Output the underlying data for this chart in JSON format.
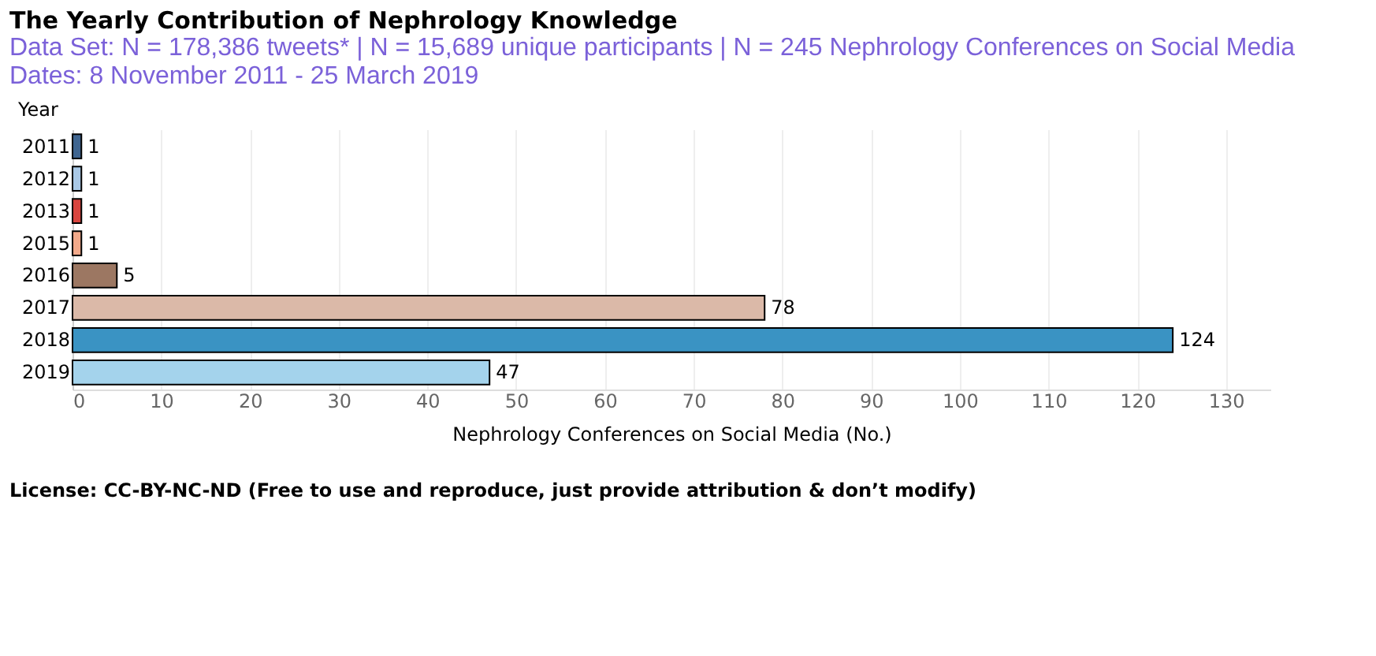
{
  "chart_data": {
    "type": "bar",
    "orientation": "horizontal",
    "title": "The Yearly Contribution of Nephrology Knowledge",
    "subtitle": "Data Set:  N = 178,386 tweets* | N = 15,689 unique participants | N = 245 Nephrology Conferences on Social Media",
    "annotations": [
      "Dates:  8 November 2011 - 25 March 2019",
      "License: CC-BY-NC-ND (Free to use and reproduce, just provide attribution & don’t modify)"
    ],
    "ylabel": "Year",
    "xlabel": "Nephrology Conferences on Social Media (No.)",
    "categories": [
      "2011",
      "2012",
      "2013",
      "2015",
      "2016",
      "2017",
      "2018",
      "2019"
    ],
    "values": [
      1,
      1,
      1,
      1,
      5,
      78,
      124,
      47
    ],
    "colors": [
      "#3f6590",
      "#a9c8e6",
      "#d9453f",
      "#f2a98a",
      "#9c7762",
      "#dbb9a8",
      "#3a93c3",
      "#a4d3ec"
    ],
    "xlim": [
      0,
      135
    ],
    "xticks": [
      0,
      10,
      20,
      30,
      40,
      50,
      60,
      70,
      80,
      90,
      100,
      110,
      120,
      130
    ],
    "grid": "x",
    "data_labels": true
  }
}
